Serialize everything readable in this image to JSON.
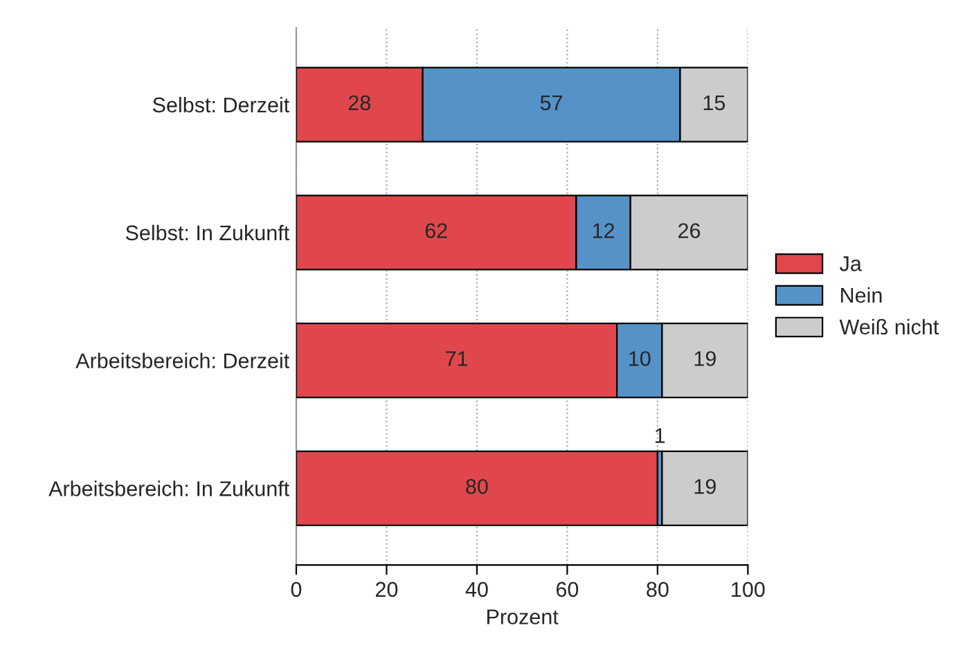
{
  "chart_data": {
    "type": "bar",
    "orientation": "horizontal",
    "stacked": true,
    "data_labels": true,
    "categories": [
      "Selbst: Derzeit",
      "Selbst: In Zukunft",
      "Arbeitsbereich: Derzeit",
      "Arbeitsbereich: In Zukunft"
    ],
    "series": [
      {
        "name": "Ja",
        "color": "#e0474c",
        "values": [
          28,
          62,
          71,
          80
        ]
      },
      {
        "name": "Nein",
        "color": "#5592c8",
        "values": [
          57,
          12,
          10,
          1
        ]
      },
      {
        "name": "Weiß nicht",
        "color": "#cccccc",
        "values": [
          15,
          26,
          19,
          19
        ]
      }
    ],
    "xlim": [
      0,
      100
    ],
    "xticks": [
      0,
      20,
      40,
      60,
      80,
      100
    ],
    "xlabel": "Prozent",
    "grid": "x",
    "legend": "right"
  }
}
